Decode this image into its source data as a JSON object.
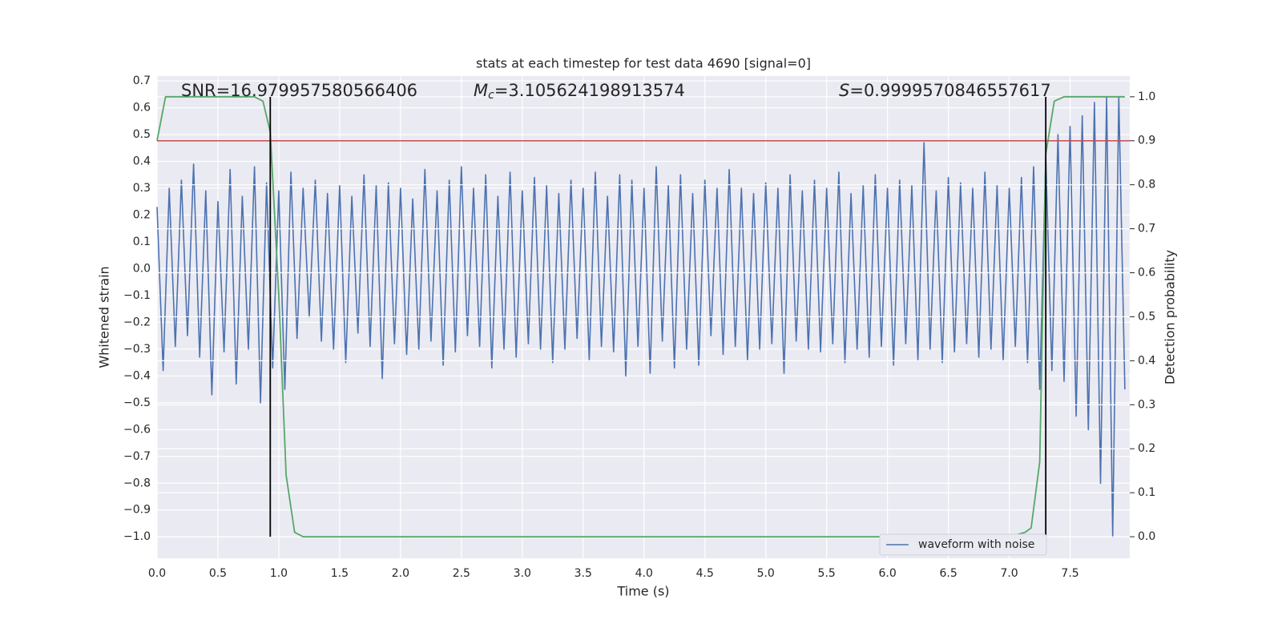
{
  "chart_data": {
    "type": "line",
    "title": "stats at each timestep for test data 4690 [signal=0]",
    "xlabel": "Time (s)",
    "ylabel": "Whitened strain",
    "y2label": "Detection probability",
    "xlim": [
      0,
      7.99
    ],
    "ylim": [
      -1.08,
      0.718
    ],
    "y2lim": [
      -0.049,
      1.047
    ],
    "xticks": [
      {
        "value": 0,
        "label": "0.0"
      },
      0.5,
      {
        "value": 1,
        "label": "1.0"
      },
      1.5,
      {
        "value": 2,
        "label": "2.0"
      },
      2.5,
      {
        "value": 3,
        "label": "3.0"
      },
      3.5,
      {
        "value": 4,
        "label": "4.0"
      },
      4.5,
      {
        "value": 5,
        "label": "5.0"
      },
      5.5,
      {
        "value": 6,
        "label": "6.0"
      },
      6.5,
      {
        "value": 7,
        "label": "7.0"
      },
      7.5
    ],
    "yticks": [
      0.7,
      0.6,
      0.5,
      0.4,
      0.3,
      0.2,
      0.1,
      {
        "value": 0,
        "label": "0.0"
      },
      {
        "value": -0.1,
        "label": "−0.1"
      },
      {
        "value": -0.2,
        "label": "−0.2"
      },
      {
        "value": -0.3,
        "label": "−0.3"
      },
      {
        "value": -0.4,
        "label": "−0.4"
      },
      {
        "value": -0.5,
        "label": "−0.5"
      },
      {
        "value": -0.6,
        "label": "−0.6"
      },
      {
        "value": -0.7,
        "label": "−0.7"
      },
      {
        "value": -0.8,
        "label": "−0.8"
      },
      {
        "value": -0.9,
        "label": "−0.9"
      },
      {
        "value": -1,
        "label": "−1.0"
      }
    ],
    "y2ticks": [
      {
        "value": 0,
        "label": "0.0"
      },
      0.1,
      0.2,
      0.3,
      0.4,
      0.5,
      0.6,
      0.7,
      0.8,
      0.9,
      {
        "value": 1,
        "label": "1.0"
      }
    ],
    "grid": true,
    "legend": "lower right",
    "series": [
      {
        "name": "waveform with noise",
        "color": "#4c72b0",
        "x": [
          0,
          0.05,
          0.1,
          0.15,
          0.2,
          0.25,
          0.3,
          0.35,
          0.4,
          0.45,
          0.5,
          0.55,
          0.6,
          0.65,
          0.7,
          0.75,
          0.8,
          0.85,
          0.9,
          0.95,
          1,
          1.05,
          1.1,
          1.15,
          1.2,
          1.25,
          1.3,
          1.35,
          1.4,
          1.45,
          1.5,
          1.55,
          1.6,
          1.65,
          1.7,
          1.75,
          1.8,
          1.85,
          1.9,
          1.95,
          2,
          2.05,
          2.1,
          2.15,
          2.2,
          2.25,
          2.3,
          2.35,
          2.4,
          2.45,
          2.5,
          2.55,
          2.6,
          2.65,
          2.7,
          2.75,
          2.8,
          2.85,
          2.9,
          2.95,
          3,
          3.05,
          3.1,
          3.15,
          3.2,
          3.25,
          3.3,
          3.35,
          3.4,
          3.45,
          3.5,
          3.55,
          3.6,
          3.65,
          3.7,
          3.75,
          3.8,
          3.85,
          3.9,
          3.95,
          4,
          4.05,
          4.1,
          4.15,
          4.2,
          4.25,
          4.3,
          4.35,
          4.4,
          4.45,
          4.5,
          4.55,
          4.6,
          4.65,
          4.7,
          4.75,
          4.8,
          4.85,
          4.9,
          4.95,
          5,
          5.05,
          5.1,
          5.15,
          5.2,
          5.25,
          5.3,
          5.35,
          5.4,
          5.45,
          5.5,
          5.55,
          5.6,
          5.65,
          5.7,
          5.75,
          5.8,
          5.85,
          5.9,
          5.95,
          6,
          6.05,
          6.1,
          6.15,
          6.2,
          6.25,
          6.3,
          6.35,
          6.4,
          6.45,
          6.5,
          6.55,
          6.6,
          6.65,
          6.7,
          6.75,
          6.8,
          6.85,
          6.9,
          6.95,
          7,
          7.05,
          7.1,
          7.15,
          7.2,
          7.25,
          7.3,
          7.35,
          7.4,
          7.45,
          7.5,
          7.55,
          7.6,
          7.65,
          7.7,
          7.75,
          7.8,
          7.85,
          7.9,
          7.95
        ],
        "values": [
          0.23,
          -0.38,
          0.3,
          -0.29,
          0.33,
          -0.25,
          0.39,
          -0.33,
          0.29,
          -0.47,
          0.25,
          -0.31,
          0.37,
          -0.43,
          0.27,
          -0.3,
          0.38,
          -0.5,
          0.32,
          -0.37,
          0.29,
          -0.45,
          0.36,
          -0.26,
          0.3,
          -0.18,
          0.33,
          -0.27,
          0.28,
          -0.3,
          0.31,
          -0.35,
          0.27,
          -0.24,
          0.35,
          -0.29,
          0.31,
          -0.41,
          0.32,
          -0.28,
          0.3,
          -0.32,
          0.26,
          -0.3,
          0.37,
          -0.27,
          0.29,
          -0.36,
          0.33,
          -0.31,
          0.38,
          -0.25,
          0.3,
          -0.29,
          0.35,
          -0.37,
          0.27,
          -0.3,
          0.36,
          -0.33,
          0.29,
          -0.28,
          0.34,
          -0.3,
          0.31,
          -0.35,
          0.28,
          -0.3,
          0.33,
          -0.26,
          0.3,
          -0.34,
          0.36,
          -0.29,
          0.27,
          -0.31,
          0.35,
          -0.4,
          0.33,
          -0.29,
          0.3,
          -0.39,
          0.38,
          -0.27,
          0.31,
          -0.37,
          0.35,
          -0.3,
          0.28,
          -0.36,
          0.33,
          -0.25,
          0.3,
          -0.32,
          0.37,
          -0.29,
          0.3,
          -0.34,
          0.28,
          -0.3,
          0.32,
          -0.28,
          0.3,
          -0.39,
          0.35,
          -0.27,
          0.29,
          -0.3,
          0.33,
          -0.31,
          0.3,
          -0.28,
          0.36,
          -0.35,
          0.28,
          -0.3,
          0.31,
          -0.33,
          0.35,
          -0.29,
          0.3,
          -0.36,
          0.33,
          -0.28,
          0.31,
          -0.34,
          0.47,
          -0.3,
          0.29,
          -0.35,
          0.34,
          -0.31,
          0.32,
          -0.28,
          0.3,
          -0.33,
          0.36,
          -0.3,
          0.31,
          -0.34,
          0.3,
          -0.29,
          0.34,
          -0.35,
          0.38,
          -0.45,
          0.41,
          -0.38,
          0.5,
          -0.42,
          0.53,
          -0.55,
          0.57,
          -0.6,
          0.62,
          -0.8,
          0.64,
          -1.0,
          0.64,
          -0.45
        ]
      }
    ],
    "probability": {
      "color": "#55a868",
      "axis": "y2",
      "x": [
        0,
        0.07,
        0.8,
        0.87,
        0.93,
        1.0,
        1.06,
        1.13,
        1.2,
        7.0,
        7.13,
        7.18,
        7.25,
        7.3,
        7.37,
        7.45,
        7.95
      ],
      "values": [
        0.9,
        1.0,
        1.0,
        0.99,
        0.92,
        0.55,
        0.14,
        0.01,
        0.0,
        0.0,
        0.01,
        0.02,
        0.17,
        0.87,
        0.99,
        1.0,
        1.0
      ]
    },
    "threshold": {
      "value": 0.9,
      "axis": "y2",
      "color": "#c44e52"
    },
    "markers": {
      "x": [
        0.93,
        7.3
      ],
      "y2range": [
        0,
        1
      ],
      "color": "#000000"
    },
    "annotations": [
      {
        "text": "SNR=16.979957580566406"
      },
      {
        "symbol": "M",
        "subscript": "c",
        "text": "=3.105624198913574"
      },
      {
        "symbol": "S",
        "text": "=0.9999570846557617"
      }
    ]
  }
}
